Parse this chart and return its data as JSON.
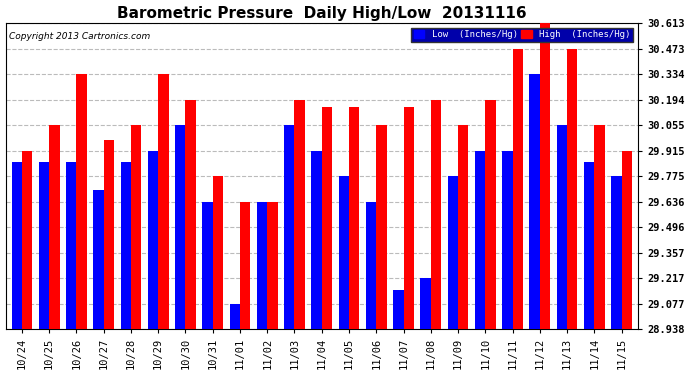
{
  "title": "Barometric Pressure  Daily High/Low  20131116",
  "copyright": "Copyright 2013 Cartronics.com",
  "legend_low": "Low  (Inches/Hg)",
  "legend_high": "High  (Inches/Hg)",
  "ylabel_right_ticks": [
    28.938,
    29.077,
    29.217,
    29.357,
    29.496,
    29.636,
    29.775,
    29.915,
    30.055,
    30.194,
    30.334,
    30.473,
    30.613
  ],
  "categories": [
    "10/24",
    "10/25",
    "10/26",
    "10/27",
    "10/28",
    "10/29",
    "10/30",
    "10/31",
    "11/01",
    "11/02",
    "11/03",
    "11/04",
    "11/05",
    "11/06",
    "11/07",
    "11/08",
    "11/09",
    "11/10",
    "11/11",
    "11/12",
    "11/13",
    "11/14",
    "11/15"
  ],
  "low_values": [
    29.855,
    29.855,
    29.855,
    29.7,
    29.855,
    29.915,
    30.055,
    29.635,
    29.077,
    29.635,
    30.055,
    29.915,
    29.775,
    29.635,
    29.15,
    29.217,
    29.775,
    29.915,
    29.915,
    30.334,
    30.055,
    29.855,
    29.775
  ],
  "high_values": [
    29.915,
    30.055,
    30.334,
    29.975,
    30.055,
    30.334,
    30.194,
    29.775,
    29.635,
    29.635,
    30.194,
    30.155,
    30.155,
    30.055,
    30.155,
    30.194,
    30.055,
    30.194,
    30.473,
    30.613,
    30.473,
    30.055,
    29.915
  ],
  "low_color": "#0000ff",
  "high_color": "#ff0000",
  "bg_color": "#ffffff",
  "plot_bg_color": "#ffffff",
  "grid_color": "#bbbbbb",
  "title_fontsize": 11,
  "tick_fontsize": 7.5,
  "bar_width": 0.38,
  "ymin": 28.938,
  "ymax": 30.613
}
